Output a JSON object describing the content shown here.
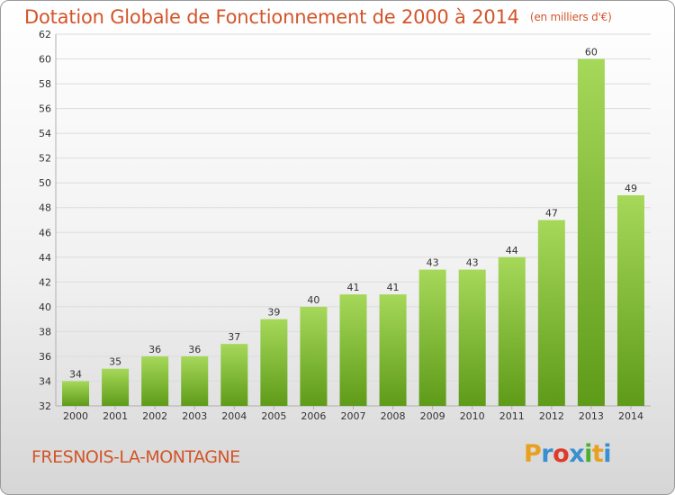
{
  "header": {
    "title": "Dotation Globale de Fonctionnement de 2000 à 2014",
    "unit": "(en milliers d'€)"
  },
  "commune": "FRESNOIS-LA-MONTAGNE",
  "logo": {
    "letters": [
      "P",
      "r",
      "o",
      "x",
      "i",
      "t",
      "i"
    ],
    "colors": [
      "#e8a020",
      "#3a8fd0",
      "#e03a2a",
      "#3a8fd0",
      "#4caf30",
      "#e8a020",
      "#3a8fd0"
    ]
  },
  "colors": {
    "bar_light": "#a6d85a",
    "bar_dark": "#5e9b18",
    "grid": "#dcdcdc",
    "axis_text": "#333333",
    "accent": "#d2552a"
  },
  "chart_data": {
    "type": "bar",
    "categories": [
      "2000",
      "2001",
      "2002",
      "2003",
      "2004",
      "2005",
      "2006",
      "2007",
      "2008",
      "2009",
      "2010",
      "2011",
      "2012",
      "2013",
      "2014"
    ],
    "values": [
      34,
      35,
      36,
      36,
      37,
      39,
      40,
      41,
      41,
      43,
      43,
      44,
      47,
      60,
      49
    ],
    "data_labels": [
      "34",
      "35",
      "36",
      "36",
      "37",
      "39",
      "40",
      "41",
      "41",
      "43",
      "43",
      "44",
      "47",
      "60",
      "49"
    ],
    "y_ticks": [
      32,
      34,
      36,
      38,
      40,
      42,
      44,
      46,
      48,
      50,
      52,
      54,
      56,
      58,
      60,
      62
    ],
    "ylim": [
      32,
      62
    ],
    "grid": true,
    "title": "Dotation Globale de Fonctionnement de 2000 à 2014",
    "xlabel": "",
    "ylabel": ""
  }
}
